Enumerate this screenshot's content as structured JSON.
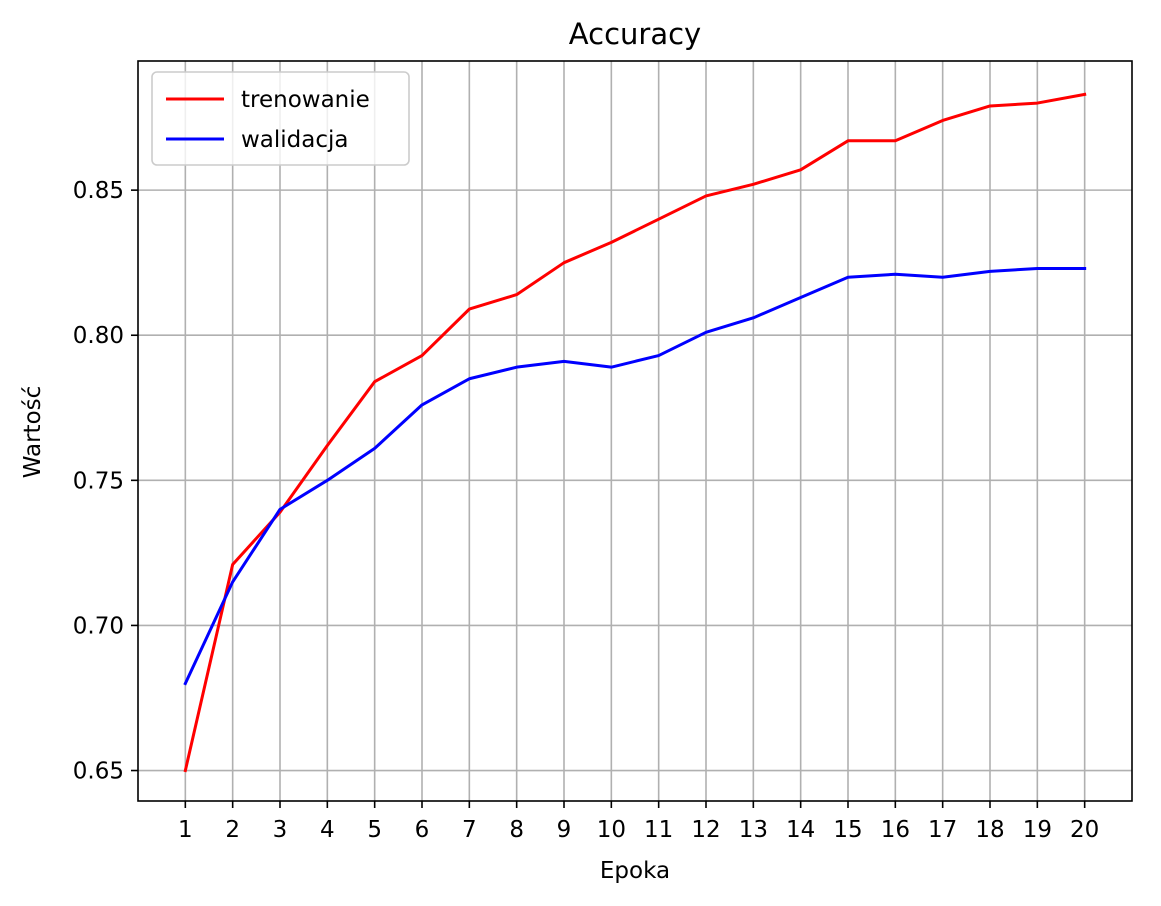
{
  "chart_data": {
    "type": "line",
    "title": "Accuracy",
    "xlabel": "Epoka",
    "ylabel": "Wartość",
    "x": [
      1,
      2,
      3,
      4,
      5,
      6,
      7,
      8,
      9,
      10,
      11,
      12,
      13,
      14,
      15,
      16,
      17,
      18,
      19,
      20
    ],
    "xlim": [
      0,
      21
    ],
    "ylim": [
      0.6395,
      0.8945
    ],
    "yticks": [
      0.65,
      0.7,
      0.75,
      0.8,
      0.85
    ],
    "ytick_labels": [
      "0.65",
      "0.70",
      "0.75",
      "0.80",
      "0.85"
    ],
    "xtick_labels": [
      "1",
      "2",
      "3",
      "4",
      "5",
      "6",
      "7",
      "8",
      "9",
      "10",
      "11",
      "12",
      "13",
      "14",
      "15",
      "16",
      "17",
      "18",
      "19",
      "20"
    ],
    "grid": true,
    "legend_position": "top-left",
    "series": [
      {
        "name": "trenowanie",
        "color": "#ff0000",
        "values": [
          0.65,
          0.721,
          0.739,
          0.762,
          0.784,
          0.793,
          0.809,
          0.814,
          0.825,
          0.832,
          0.84,
          0.848,
          0.852,
          0.857,
          0.867,
          0.867,
          0.874,
          0.879,
          0.88,
          0.883
        ]
      },
      {
        "name": "walidacja",
        "color": "#0000ff",
        "values": [
          0.68,
          0.715,
          0.74,
          0.75,
          0.761,
          0.776,
          0.785,
          0.789,
          0.791,
          0.789,
          0.793,
          0.801,
          0.806,
          0.813,
          0.82,
          0.821,
          0.82,
          0.822,
          0.823,
          0.823
        ]
      }
    ]
  }
}
